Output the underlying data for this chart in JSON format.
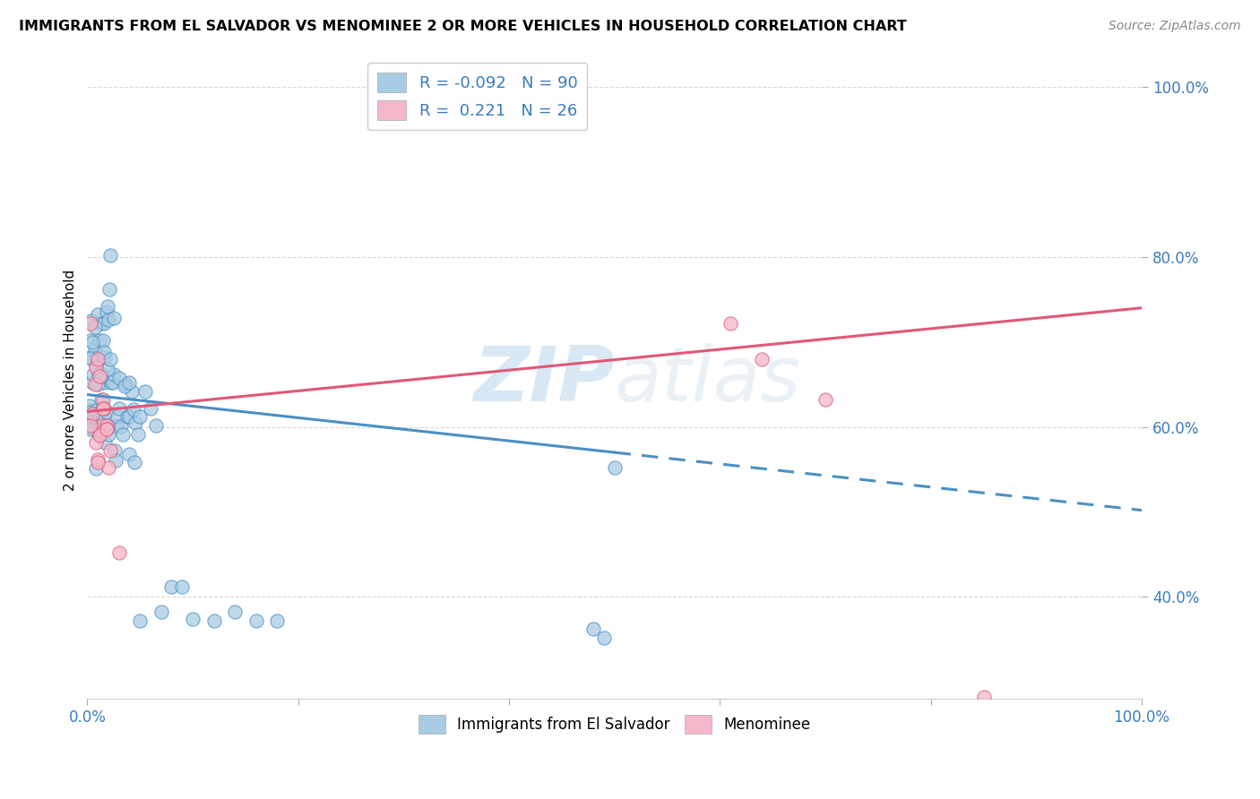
{
  "title": "IMMIGRANTS FROM EL SALVADOR VS MENOMINEE 2 OR MORE VEHICLES IN HOUSEHOLD CORRELATION CHART",
  "source": "Source: ZipAtlas.com",
  "xlabel_blue": "Immigrants from El Salvador",
  "xlabel_pink": "Menominee",
  "ylabel": "2 or more Vehicles in Household",
  "R_blue": -0.092,
  "N_blue": 90,
  "R_pink": 0.221,
  "N_pink": 26,
  "blue_color": "#a8cce4",
  "pink_color": "#f4b8c8",
  "blue_line_color": "#4a90c4",
  "pink_line_color": "#e05878",
  "xmin": 0.0,
  "xmax": 1.0,
  "ymin": 0.28,
  "ymax": 1.03,
  "blue_trendline_y_start": 0.638,
  "blue_trendline_y_mid": 0.57,
  "blue_trendline_y_end": 0.502,
  "pink_trendline_y_start": 0.618,
  "pink_trendline_y_end": 0.74,
  "watermark_color": "#c8dff0",
  "background_color": "#ffffff",
  "blue_x": [
    0.001,
    0.002,
    0.003,
    0.004,
    0.005,
    0.006,
    0.007,
    0.008,
    0.009,
    0.01,
    0.011,
    0.012,
    0.013,
    0.014,
    0.015,
    0.016,
    0.017,
    0.018,
    0.019,
    0.02,
    0.002,
    0.003,
    0.004,
    0.005,
    0.006,
    0.007,
    0.008,
    0.009,
    0.01,
    0.011,
    0.012,
    0.013,
    0.014,
    0.015,
    0.016,
    0.017,
    0.018,
    0.019,
    0.02,
    0.021,
    0.022,
    0.023,
    0.024,
    0.025,
    0.026,
    0.027,
    0.028,
    0.029,
    0.03,
    0.032,
    0.034,
    0.036,
    0.038,
    0.04,
    0.042,
    0.044,
    0.046,
    0.048,
    0.05,
    0.055,
    0.06,
    0.065,
    0.07,
    0.08,
    0.09,
    0.1,
    0.12,
    0.14,
    0.16,
    0.18,
    0.003,
    0.005,
    0.007,
    0.01,
    0.013,
    0.016,
    0.019,
    0.022,
    0.025,
    0.03,
    0.035,
    0.04,
    0.045,
    0.05,
    0.48,
    0.49,
    0.5,
    0.003,
    0.008,
    0.04
  ],
  "blue_y": [
    0.62,
    0.625,
    0.618,
    0.61,
    0.605,
    0.598,
    0.612,
    0.62,
    0.603,
    0.608,
    0.598,
    0.596,
    0.632,
    0.621,
    0.612,
    0.652,
    0.582,
    0.617,
    0.601,
    0.591,
    0.682,
    0.702,
    0.725,
    0.652,
    0.662,
    0.692,
    0.672,
    0.682,
    0.732,
    0.662,
    0.702,
    0.722,
    0.662,
    0.702,
    0.722,
    0.682,
    0.735,
    0.742,
    0.726,
    0.762,
    0.802,
    0.652,
    0.652,
    0.662,
    0.572,
    0.561,
    0.602,
    0.612,
    0.622,
    0.601,
    0.591,
    0.65,
    0.612,
    0.612,
    0.642,
    0.621,
    0.605,
    0.591,
    0.612,
    0.642,
    0.622,
    0.602,
    0.382,
    0.412,
    0.412,
    0.374,
    0.372,
    0.382,
    0.372,
    0.372,
    0.681,
    0.7,
    0.718,
    0.65,
    0.66,
    0.688,
    0.668,
    0.68,
    0.728,
    0.658,
    0.648,
    0.568,
    0.558,
    0.372,
    0.362,
    0.352,
    0.552,
    0.598,
    0.551,
    0.652
  ],
  "pink_x": [
    0.003,
    0.005,
    0.007,
    0.008,
    0.01,
    0.012,
    0.014,
    0.015,
    0.016,
    0.018,
    0.01,
    0.012,
    0.015,
    0.018,
    0.02,
    0.022,
    0.008,
    0.01,
    0.012,
    0.61,
    0.64,
    0.7,
    0.85,
    0.003,
    0.018,
    0.03
  ],
  "pink_y": [
    0.722,
    0.615,
    0.65,
    0.67,
    0.68,
    0.66,
    0.602,
    0.632,
    0.622,
    0.602,
    0.562,
    0.592,
    0.622,
    0.598,
    0.552,
    0.572,
    0.582,
    0.558,
    0.59,
    0.722,
    0.68,
    0.632,
    0.282,
    0.602,
    0.598,
    0.452
  ]
}
